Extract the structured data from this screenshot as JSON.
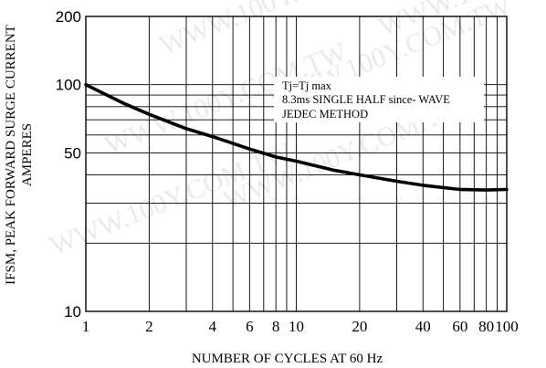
{
  "chart_data": {
    "type": "line",
    "title": "",
    "xlabel": "NUMBER OF CYCLES AT 60 Hz",
    "ylabel_lines": [
      "IFSM,  PEAK FORWARD SURGE CURRENT",
      "AMPERES"
    ],
    "x_scale": "log",
    "y_scale": "log",
    "xlim": [
      1,
      100
    ],
    "ylim": [
      10,
      200
    ],
    "x_ticks": [
      {
        "value": 1,
        "label": "1"
      },
      {
        "value": 2,
        "label": "2"
      },
      {
        "value": 4,
        "label": "4"
      },
      {
        "value": 6,
        "label": "6"
      },
      {
        "value": 8,
        "label": "8"
      },
      {
        "value": 10,
        "label": "10"
      },
      {
        "value": 20,
        "label": "20"
      },
      {
        "value": 40,
        "label": "40"
      },
      {
        "value": 60,
        "label": "60"
      },
      {
        "value": 80,
        "label": "80"
      },
      {
        "value": 100,
        "label": "100"
      }
    ],
    "y_ticks": [
      {
        "value": 200,
        "label": "200"
      },
      {
        "value": 100,
        "label": "100"
      },
      {
        "value": 50,
        "label": "50"
      },
      {
        "value": 10,
        "label": "10"
      }
    ],
    "grid": true,
    "series": [
      {
        "color": "#000000",
        "x": [
          1,
          1.5,
          2,
          3,
          4,
          6,
          8,
          10,
          15,
          20,
          30,
          40,
          60,
          80,
          100
        ],
        "y": [
          100,
          83,
          74,
          64,
          59,
          52,
          48,
          46,
          42,
          40,
          37.5,
          36,
          34.5,
          34.3,
          34.5
        ]
      }
    ],
    "annotations": [
      "Tj=Tj max",
      "8.3ms   SINGLE HALF since-  WAVE",
      "JEDEC  METHOD"
    ]
  },
  "watermark": {
    "text": "WWW.100Y.COM.TW",
    "color": "#d9d9d9"
  }
}
